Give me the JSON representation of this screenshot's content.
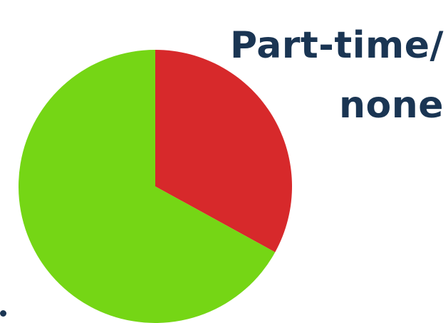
{
  "chart_data": {
    "type": "pie",
    "title": "Part-time/ none",
    "slices": [
      {
        "value": 33,
        "color": "#d7292b"
      },
      {
        "value": 67,
        "color": "#75d615"
      }
    ],
    "start_angle_deg": 0,
    "direction": "clockwise"
  }
}
